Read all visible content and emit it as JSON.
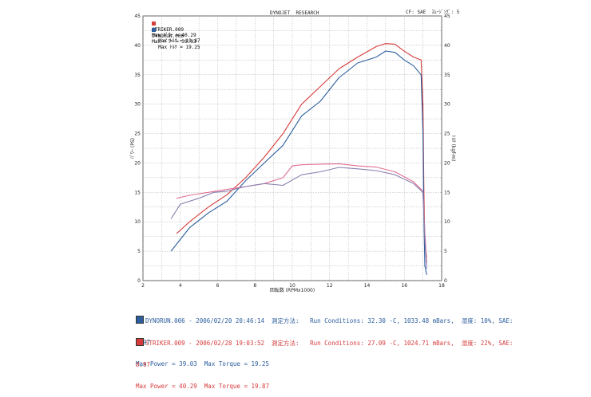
{
  "header": {
    "center_title": "DYNOJET  RESEARCH",
    "right_note": "CF: SAE  ｽﾑｰｼﾞﾝｸﾞ: 5"
  },
  "legend": [
    {
      "run": "STRIKER.009",
      "power": "Max ﾊﾟﾜｰ = 40.29",
      "torque": "Max ﾄﾙｸ = 19.87",
      "color": "#d63c3c"
    },
    {
      "run": "DYNORUN.006",
      "power": "Max ﾊﾟﾜｰ = 39.03",
      "torque": "Max ﾄﾙｸ = 19.25",
      "color": "#2c5e9e"
    }
  ],
  "info": [
    {
      "color": "#2c5e9e",
      "line1": "DYNORUN.006 - 2006/02/20 20:46:14  測定方法:   Run Conditions: 32.30 -C, 1033.48 mBars,  湿度: 10%, SAE:",
      "line2": "0.97",
      "line3": "Max Power = 39.03  Max Torque = 19.25"
    },
    {
      "color": "#d63c3c",
      "line1": "STRIKER.009 - 2006/02/28 19:03:52  測定方法:   Run Conditions: 27.09 -C, 1024.71 mBars,  湿度: 22%, SAE:",
      "line2": "0.97",
      "line3": "Max Power = 40.29  Max Torque = 19.87"
    }
  ],
  "chart_data": {
    "type": "line",
    "xlabel": "回転数 (RPMx1000)",
    "ylabel_left": "ﾊﾟﾜｰ (PS)",
    "ylabel_right": "ﾄﾙｸ (kgf-m)",
    "xlim": [
      2,
      18
    ],
    "ylim": [
      0,
      45
    ],
    "xticks": [
      "2",
      "4",
      "6",
      "8",
      "10",
      "12",
      "14",
      "16",
      "18"
    ],
    "yticks": [
      "0",
      "5",
      "10",
      "15",
      "20",
      "25",
      "30",
      "35",
      "40",
      "45"
    ],
    "grid": true,
    "series": [
      {
        "name": "STRIKER.009",
        "kind": "power",
        "color": "#d63c3c",
        "x": [
          3.8,
          4.5,
          5.5,
          6.5,
          7.5,
          8.5,
          9.5,
          10.5,
          11.5,
          12.5,
          13.5,
          14.5,
          15.0,
          15.5,
          16.0,
          16.5,
          16.9,
          17.0,
          17.05,
          17.1,
          17.2
        ],
        "y": [
          8.0,
          10.0,
          12.5,
          14.6,
          17.5,
          21.0,
          25.0,
          30.0,
          33.0,
          36.0,
          38.0,
          39.8,
          40.29,
          40.2,
          39.0,
          38.0,
          37.5,
          30.0,
          15.0,
          6.0,
          4.0
        ]
      },
      {
        "name": "DYNORUN.006",
        "kind": "power",
        "color": "#2c5e9e",
        "x": [
          3.5,
          4.5,
          5.5,
          6.5,
          7.5,
          8.5,
          9.5,
          10.5,
          11.5,
          12.5,
          13.5,
          14.5,
          15.0,
          15.5,
          16.0,
          16.5,
          16.9,
          17.0,
          17.05,
          17.1,
          17.2
        ],
        "y": [
          5.0,
          9.0,
          11.5,
          13.5,
          17.0,
          20.0,
          23.0,
          28.0,
          30.5,
          34.5,
          37.0,
          38.0,
          39.03,
          38.8,
          37.5,
          36.5,
          35.0,
          25.0,
          10.0,
          2.5,
          1.0
        ]
      },
      {
        "name": "STRIKER.009",
        "kind": "torque",
        "color": "#e07090",
        "x": [
          3.8,
          4.5,
          5.5,
          6.5,
          7.5,
          8.5,
          9.5,
          10.0,
          10.5,
          11.5,
          12.5,
          13.5,
          14.5,
          15.5,
          16.5,
          17.0,
          17.1,
          17.2
        ],
        "y": [
          14.0,
          14.5,
          15.0,
          15.5,
          16.0,
          16.5,
          17.5,
          19.5,
          19.7,
          19.8,
          19.87,
          19.5,
          19.3,
          18.5,
          16.8,
          15.2,
          8.0,
          3.0
        ]
      },
      {
        "name": "DYNORUN.006",
        "kind": "torque",
        "color": "#8a7fb0",
        "x": [
          3.5,
          4.0,
          5.0,
          5.8,
          6.5,
          7.5,
          8.5,
          9.5,
          10.5,
          11.5,
          12.5,
          13.5,
          14.5,
          15.5,
          16.5,
          17.0,
          17.1,
          17.2
        ],
        "y": [
          10.5,
          13.0,
          14.0,
          15.0,
          15.2,
          16.0,
          16.5,
          16.2,
          18.0,
          18.5,
          19.25,
          19.0,
          18.7,
          18.0,
          16.5,
          15.0,
          7.0,
          2.0
        ]
      }
    ]
  }
}
